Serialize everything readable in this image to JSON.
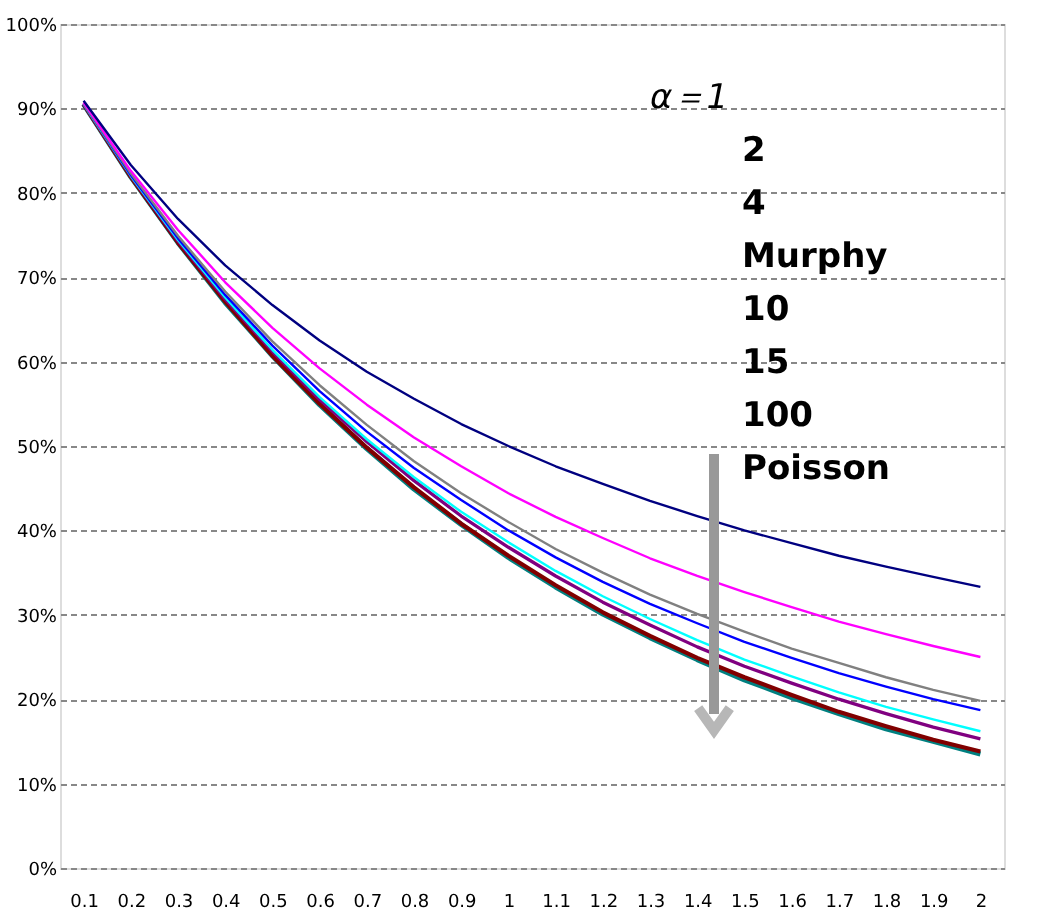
{
  "chart_data": {
    "type": "line",
    "categories": [
      "0.1",
      "0.2",
      "0.3",
      "0.4",
      "0.5",
      "0.6",
      "0.7",
      "0.8",
      "0.9",
      "1",
      "1.1",
      "1.2",
      "1.3",
      "1.4",
      "1.5",
      "1.6",
      "1.7",
      "1.8",
      "1.9",
      "2"
    ],
    "series": [
      {
        "color": "#000080",
        "values": [
          90.9,
          83.3,
          76.9,
          71.4,
          66.7,
          62.5,
          58.8,
          55.6,
          52.6,
          50.0,
          47.6,
          45.5,
          43.5,
          41.7,
          40.0,
          38.5,
          37.0,
          35.7,
          34.5,
          33.3
        ]
      },
      {
        "color": "#ff00ff",
        "values": [
          90.7,
          82.6,
          75.6,
          69.4,
          64.0,
          59.2,
          54.9,
          51.0,
          47.6,
          44.4,
          41.6,
          39.1,
          36.7,
          34.6,
          32.7,
          30.9,
          29.2,
          27.7,
          26.3,
          25.0
        ]
      },
      {
        "color": "#808080",
        "values": [
          90.6,
          82.3,
          74.9,
          68.3,
          62.4,
          57.2,
          52.5,
          48.2,
          44.4,
          41.0,
          37.8,
          35.0,
          32.4,
          30.1,
          28.0,
          26.0,
          24.3,
          22.6,
          21.1,
          19.8
        ]
      },
      {
        "color": "#0000ff",
        "values": [
          90.6,
          82.1,
          74.6,
          67.9,
          61.9,
          56.5,
          51.7,
          47.4,
          43.6,
          40.0,
          36.8,
          33.9,
          31.3,
          29.0,
          26.8,
          24.9,
          23.1,
          21.5,
          20.0,
          18.7
        ]
      },
      {
        "color": "#00ffff",
        "values": [
          90.5,
          82.0,
          74.4,
          67.6,
          61.4,
          55.8,
          50.8,
          46.3,
          42.2,
          38.6,
          35.2,
          32.2,
          29.5,
          27.0,
          24.7,
          22.7,
          20.8,
          19.1,
          17.6,
          16.2
        ]
      },
      {
        "color": "#800080",
        "values": [
          90.5,
          82.0,
          74.3,
          67.4,
          61.2,
          55.5,
          50.5,
          45.9,
          41.7,
          38.0,
          34.6,
          31.5,
          28.8,
          26.2,
          23.9,
          21.9,
          20.0,
          18.3,
          16.7,
          15.3
        ]
      },
      {
        "color": "#800000",
        "values": [
          90.5,
          81.9,
          74.1,
          67.1,
          60.7,
          55.0,
          49.8,
          45.1,
          40.8,
          37.0,
          33.5,
          30.3,
          27.5,
          24.9,
          22.6,
          20.5,
          18.5,
          16.8,
          15.2,
          13.8
        ]
      },
      {
        "color": "#008080",
        "values": [
          90.5,
          81.9,
          74.1,
          67.0,
          60.7,
          54.9,
          49.7,
          44.9,
          40.7,
          36.8,
          33.3,
          30.1,
          27.3,
          24.7,
          22.3,
          20.2,
          18.3,
          16.5,
          15.0,
          13.5
        ]
      }
    ],
    "ylim": [
      0,
      100
    ],
    "yticks": [
      {
        "value": 0,
        "label": "0%"
      },
      {
        "value": 10,
        "label": "10%"
      },
      {
        "value": 20,
        "label": "20%"
      },
      {
        "value": 30,
        "label": "30%"
      },
      {
        "value": 40,
        "label": "40%"
      },
      {
        "value": 50,
        "label": "50%"
      },
      {
        "value": 60,
        "label": "60%"
      },
      {
        "value": 70,
        "label": "70%"
      },
      {
        "value": 80,
        "label": "80%"
      },
      {
        "value": 90,
        "label": "90%"
      },
      {
        "value": 100,
        "label": "100%"
      }
    ],
    "grid": "y",
    "legend": false,
    "marker": "none",
    "line_style": "solid",
    "annotations": [
      "α＝1",
      "2",
      "4",
      "Murphy",
      "10",
      "15",
      "100",
      "Poisson"
    ]
  }
}
